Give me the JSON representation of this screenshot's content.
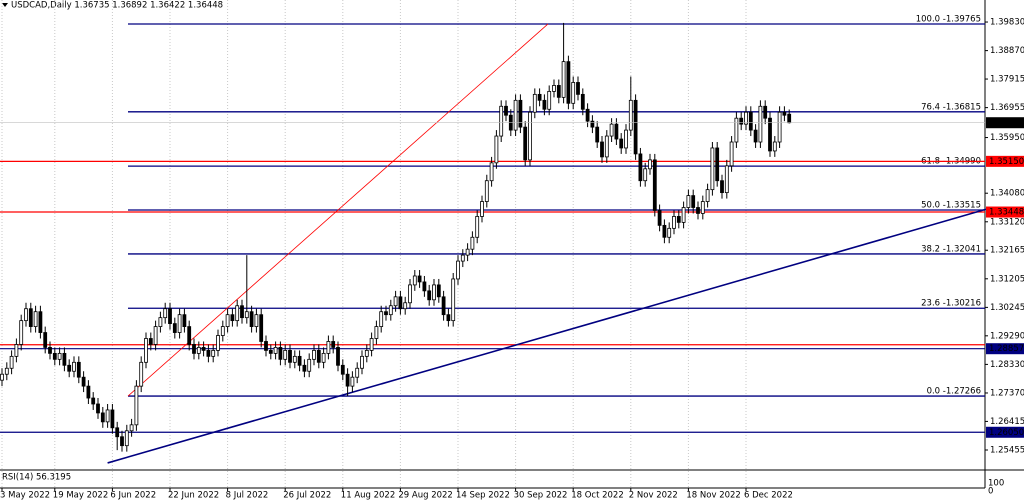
{
  "chart_data": {
    "type": "candlestick",
    "title": "USDCAD,Daily 1.36735 1.36892 1.36422 1.36448",
    "indicator_label": "RSI(14) 56.3195",
    "indicator_ticks": [
      100,
      0
    ],
    "up_color": "#ffffff",
    "down_color": "#000000",
    "grid": true,
    "xlim": [
      0,
      205
    ],
    "xticks": [
      {
        "value": 0,
        "label": "3 May 2022"
      },
      {
        "value": 11,
        "label": "19 May 2022"
      },
      {
        "value": 23,
        "label": "6 Jun 2022"
      },
      {
        "value": 35,
        "label": "22 Jun 2022"
      },
      {
        "value": 47,
        "label": "8 Jul 2022"
      },
      {
        "value": 59,
        "label": "26 Jul 2022"
      },
      {
        "value": 71,
        "label": "11 Aug 2022"
      },
      {
        "value": 83,
        "label": "29 Aug 2022"
      },
      {
        "value": 95,
        "label": "14 Sep 2022"
      },
      {
        "value": 107,
        "label": "30 Sep 2022"
      },
      {
        "value": 119,
        "label": "18 Oct 2022"
      },
      {
        "value": 131,
        "label": "2 Nov 2022"
      },
      {
        "value": 143,
        "label": "18 Nov 2022"
      },
      {
        "value": 155,
        "label": "6 Dec 2022"
      }
    ],
    "ylim": [
      1.2485,
      1.4057
    ],
    "yticks": [
      {
        "value": 1.3983,
        "label": "1.39830"
      },
      {
        "value": 1.3887,
        "label": "1.38870"
      },
      1.37915,
      1.36955,
      {
        "value": 1.3595,
        "label": "1.35950"
      },
      {
        "value": 1.3408,
        "label": "1.34080"
      },
      {
        "value": 1.3312,
        "label": "1.33120"
      },
      1.32165,
      1.31205,
      1.30245,
      {
        "value": 1.2929,
        "label": "1.29290"
      },
      {
        "value": 1.2833,
        "label": "1.28330"
      },
      {
        "value": 1.2737,
        "label": "1.27370"
      },
      1.26415,
      1.25455
    ],
    "candles": [
      [
        1.278,
        1.282,
        1.276,
        1.28
      ],
      [
        1.28,
        1.284,
        1.278,
        1.282
      ],
      [
        1.282,
        1.288,
        1.28,
        1.286
      ],
      [
        1.286,
        1.292,
        1.284,
        1.29
      ],
      [
        1.29,
        1.3,
        1.288,
        1.298
      ],
      [
        1.298,
        1.304,
        1.296,
        1.302
      ],
      [
        1.302,
        1.304,
        1.294,
        1.296
      ],
      [
        1.296,
        1.303,
        1.294,
        1.301
      ],
      [
        1.301,
        1.303,
        1.292,
        1.294
      ],
      [
        1.294,
        1.296,
        1.287,
        1.289
      ],
      [
        1.289,
        1.291,
        1.285,
        1.287
      ],
      [
        1.287,
        1.289,
        1.283,
        1.285
      ],
      [
        1.285,
        1.289,
        1.283,
        1.287
      ],
      [
        1.287,
        1.289,
        1.281,
        1.283
      ],
      [
        1.283,
        1.285,
        1.279,
        1.281
      ],
      [
        1.281,
        1.286,
        1.279,
        1.284
      ],
      [
        1.284,
        1.286,
        1.277,
        1.279
      ],
      [
        1.279,
        1.281,
        1.274,
        1.276
      ],
      [
        1.276,
        1.278,
        1.27,
        1.272
      ],
      [
        1.272,
        1.274,
        1.268,
        1.27
      ],
      [
        1.27,
        1.272,
        1.265,
        1.267
      ],
      [
        1.267,
        1.269,
        1.262,
        1.264
      ],
      [
        1.264,
        1.27,
        1.262,
        1.268
      ],
      [
        1.268,
        1.27,
        1.26,
        1.262
      ],
      [
        1.262,
        1.264,
        1.2545,
        1.259
      ],
      [
        1.259,
        1.261,
        1.254,
        1.256
      ],
      [
        1.256,
        1.263,
        1.254,
        1.261
      ],
      [
        1.261,
        1.265,
        1.259,
        1.263
      ],
      [
        1.263,
        1.278,
        1.261,
        1.276
      ],
      [
        1.276,
        1.286,
        1.274,
        1.284
      ],
      [
        1.284,
        1.294,
        1.282,
        1.292
      ],
      [
        1.292,
        1.294,
        1.288,
        1.29
      ],
      [
        1.29,
        1.298,
        1.288,
        1.296
      ],
      [
        1.296,
        1.301,
        1.294,
        1.299
      ],
      [
        1.299,
        1.304,
        1.297,
        1.302
      ],
      [
        1.302,
        1.304,
        1.295,
        1.297
      ],
      [
        1.297,
        1.299,
        1.292,
        1.294
      ],
      [
        1.294,
        1.302,
        1.292,
        1.3
      ],
      [
        1.3,
        1.302,
        1.294,
        1.296
      ],
      [
        1.296,
        1.298,
        1.288,
        1.29
      ],
      [
        1.29,
        1.292,
        1.285,
        1.287
      ],
      [
        1.287,
        1.291,
        1.285,
        1.289
      ],
      [
        1.289,
        1.291,
        1.286,
        1.288
      ],
      [
        1.288,
        1.29,
        1.284,
        1.286
      ],
      [
        1.286,
        1.29,
        1.284,
        1.288
      ],
      [
        1.288,
        1.295,
        1.286,
        1.293
      ],
      [
        1.293,
        1.298,
        1.291,
        1.296
      ],
      [
        1.296,
        1.302,
        1.294,
        1.3
      ],
      [
        1.3,
        1.302,
        1.296,
        1.298
      ],
      [
        1.298,
        1.305,
        1.296,
        1.303
      ],
      [
        1.303,
        1.305,
        1.297,
        1.299
      ],
      [
        1.299,
        1.32,
        1.297,
        1.301
      ],
      [
        1.301,
        1.303,
        1.294,
        1.296
      ],
      [
        1.296,
        1.302,
        1.294,
        1.3
      ],
      [
        1.3,
        1.302,
        1.289,
        1.291
      ],
      [
        1.291,
        1.293,
        1.286,
        1.288
      ],
      [
        1.288,
        1.29,
        1.285,
        1.287
      ],
      [
        1.287,
        1.291,
        1.285,
        1.289
      ],
      [
        1.289,
        1.291,
        1.283,
        1.285
      ],
      [
        1.285,
        1.29,
        1.283,
        1.288
      ],
      [
        1.288,
        1.29,
        1.282,
        1.284
      ],
      [
        1.284,
        1.288,
        1.282,
        1.286
      ],
      [
        1.286,
        1.288,
        1.281,
        1.283
      ],
      [
        1.283,
        1.285,
        1.279,
        1.281
      ],
      [
        1.281,
        1.287,
        1.279,
        1.285
      ],
      [
        1.285,
        1.29,
        1.283,
        1.288
      ],
      [
        1.288,
        1.29,
        1.282,
        1.284
      ],
      [
        1.284,
        1.289,
        1.282,
        1.287
      ],
      [
        1.287,
        1.293,
        1.285,
        1.291
      ],
      [
        1.291,
        1.293,
        1.287,
        1.289
      ],
      [
        1.289,
        1.291,
        1.281,
        1.283
      ],
      [
        1.283,
        1.285,
        1.278,
        1.28
      ],
      [
        1.28,
        1.282,
        1.2727,
        1.276
      ],
      [
        1.276,
        1.281,
        1.274,
        1.279
      ],
      [
        1.279,
        1.284,
        1.277,
        1.282
      ],
      [
        1.282,
        1.288,
        1.28,
        1.286
      ],
      [
        1.286,
        1.29,
        1.284,
        1.288
      ],
      [
        1.288,
        1.294,
        1.286,
        1.292
      ],
      [
        1.292,
        1.298,
        1.29,
        1.296
      ],
      [
        1.296,
        1.303,
        1.294,
        1.301
      ],
      [
        1.301,
        1.303,
        1.298,
        1.3
      ],
      [
        1.3,
        1.305,
        1.298,
        1.303
      ],
      [
        1.303,
        1.308,
        1.301,
        1.306
      ],
      [
        1.306,
        1.308,
        1.3,
        1.302
      ],
      [
        1.302,
        1.306,
        1.3,
        1.304
      ],
      [
        1.304,
        1.312,
        1.302,
        1.31
      ],
      [
        1.31,
        1.315,
        1.308,
        1.313
      ],
      [
        1.313,
        1.315,
        1.309,
        1.311
      ],
      [
        1.311,
        1.313,
        1.306,
        1.308
      ],
      [
        1.308,
        1.31,
        1.303,
        1.305
      ],
      [
        1.305,
        1.312,
        1.303,
        1.31
      ],
      [
        1.31,
        1.312,
        1.304,
        1.306
      ],
      [
        1.306,
        1.308,
        1.298,
        1.3
      ],
      [
        1.3,
        1.302,
        1.296,
        1.298
      ],
      [
        1.298,
        1.314,
        1.296,
        1.312
      ],
      [
        1.312,
        1.32,
        1.31,
        1.318
      ],
      [
        1.318,
        1.322,
        1.316,
        1.32
      ],
      [
        1.32,
        1.324,
        1.318,
        1.322
      ],
      [
        1.322,
        1.328,
        1.32,
        1.326
      ],
      [
        1.326,
        1.335,
        1.324,
        1.333
      ],
      [
        1.333,
        1.34,
        1.331,
        1.338
      ],
      [
        1.338,
        1.347,
        1.336,
        1.345
      ],
      [
        1.345,
        1.353,
        1.343,
        1.351
      ],
      [
        1.351,
        1.362,
        1.349,
        1.36
      ],
      [
        1.36,
        1.372,
        1.358,
        1.37
      ],
      [
        1.37,
        1.372,
        1.365,
        1.367
      ],
      [
        1.367,
        1.369,
        1.36,
        1.362
      ],
      [
        1.362,
        1.374,
        1.36,
        1.372
      ],
      [
        1.372,
        1.374,
        1.361,
        1.363
      ],
      [
        1.363,
        1.365,
        1.35,
        1.352
      ],
      [
        1.352,
        1.37,
        1.35,
        1.368
      ],
      [
        1.368,
        1.376,
        1.366,
        1.374
      ],
      [
        1.374,
        1.376,
        1.37,
        1.372
      ],
      [
        1.372,
        1.374,
        1.367,
        1.369
      ],
      [
        1.369,
        1.377,
        1.367,
        1.375
      ],
      [
        1.375,
        1.379,
        1.373,
        1.377
      ],
      [
        1.377,
        1.379,
        1.371,
        1.373
      ],
      [
        1.373,
        1.398,
        1.371,
        1.385
      ],
      [
        1.385,
        1.387,
        1.369,
        1.371
      ],
      [
        1.371,
        1.38,
        1.369,
        1.378
      ],
      [
        1.378,
        1.38,
        1.372,
        1.374
      ],
      [
        1.374,
        1.376,
        1.367,
        1.369
      ],
      [
        1.369,
        1.371,
        1.363,
        1.365
      ],
      [
        1.365,
        1.367,
        1.361,
        1.363
      ],
      [
        1.363,
        1.365,
        1.356,
        1.358
      ],
      [
        1.358,
        1.36,
        1.351,
        1.353
      ],
      [
        1.353,
        1.362,
        1.351,
        1.36
      ],
      [
        1.36,
        1.366,
        1.358,
        1.364
      ],
      [
        1.364,
        1.366,
        1.357,
        1.359
      ],
      [
        1.359,
        1.361,
        1.354,
        1.356
      ],
      [
        1.356,
        1.364,
        1.354,
        1.362
      ],
      [
        1.362,
        1.38,
        1.36,
        1.372
      ],
      [
        1.372,
        1.374,
        1.352,
        1.354
      ],
      [
        1.354,
        1.356,
        1.343,
        1.345
      ],
      [
        1.345,
        1.351,
        1.343,
        1.349
      ],
      [
        1.349,
        1.354,
        1.347,
        1.352
      ],
      [
        1.352,
        1.354,
        1.333,
        1.335
      ],
      [
        1.335,
        1.337,
        1.328,
        1.33
      ],
      [
        1.33,
        1.332,
        1.324,
        1.326
      ],
      [
        1.326,
        1.331,
        1.324,
        1.329
      ],
      [
        1.329,
        1.335,
        1.327,
        1.333
      ],
      [
        1.333,
        1.335,
        1.329,
        1.331
      ],
      [
        1.331,
        1.338,
        1.329,
        1.336
      ],
      [
        1.336,
        1.342,
        1.334,
        1.34
      ],
      [
        1.34,
        1.342,
        1.334,
        1.336
      ],
      [
        1.336,
        1.338,
        1.332,
        1.334
      ],
      [
        1.334,
        1.34,
        1.332,
        1.338
      ],
      [
        1.338,
        1.344,
        1.336,
        1.342
      ],
      [
        1.342,
        1.358,
        1.34,
        1.356
      ],
      [
        1.356,
        1.358,
        1.343,
        1.345
      ],
      [
        1.345,
        1.347,
        1.339,
        1.341
      ],
      [
        1.341,
        1.352,
        1.339,
        1.35
      ],
      [
        1.35,
        1.36,
        1.348,
        1.358
      ],
      [
        1.358,
        1.368,
        1.356,
        1.366
      ],
      [
        1.366,
        1.368,
        1.362,
        1.364
      ],
      [
        1.364,
        1.37,
        1.362,
        1.368
      ],
      [
        1.368,
        1.37,
        1.36,
        1.362
      ],
      [
        1.362,
        1.364,
        1.356,
        1.358
      ],
      [
        1.358,
        1.372,
        1.356,
        1.37
      ],
      [
        1.37,
        1.372,
        1.364,
        1.366
      ],
      [
        1.366,
        1.368,
        1.353,
        1.355
      ],
      [
        1.355,
        1.36,
        1.353,
        1.358
      ],
      [
        1.358,
        1.37,
        1.356,
        1.368
      ],
      [
        1.368,
        1.37,
        1.365,
        1.367
      ],
      [
        1.36735,
        1.36892,
        1.36422,
        1.36448
      ]
    ],
    "fib_color": "#000080",
    "fib_start": 26.25,
    "fib_levels": [
      {
        "value": 1.39765,
        "label": "100.0 -1.39765"
      },
      {
        "value": 1.36815,
        "label": "76.4 -1.36815"
      },
      {
        "value": 1.3499,
        "label": "61.8 -1.34990"
      },
      {
        "value": 1.33515,
        "label": "50.0 -1.33515"
      },
      {
        "value": 1.32041,
        "label": "38.2 -1.32041"
      },
      {
        "value": 1.30216,
        "label": "23.6 -1.30216"
      },
      {
        "value": 1.27266,
        "label": "0.0 -1.27266"
      }
    ],
    "horizontal_lines": [
      {
        "value": 1.3515,
        "label": "1.35150",
        "color": "#ff0000"
      },
      {
        "value": 1.33448,
        "label": "1.33448",
        "color": "#ff0000"
      },
      {
        "value": 1.2899,
        "color": "#ff0000"
      },
      {
        "value": 1.28857,
        "label": "1.28857",
        "color": "#000080"
      },
      {
        "value": 1.2605,
        "label": "1.26050",
        "color": "#000080"
      }
    ],
    "trend_lines": [
      {
        "color": "#000080",
        "x": [
          22,
          205
        ],
        "y": [
          1.2502,
          1.3354
        ]
      },
      {
        "color": "#ff0000",
        "x": [
          26.25,
          113.75
        ],
        "y": [
          1.27266,
          1.39765
        ]
      }
    ]
  }
}
